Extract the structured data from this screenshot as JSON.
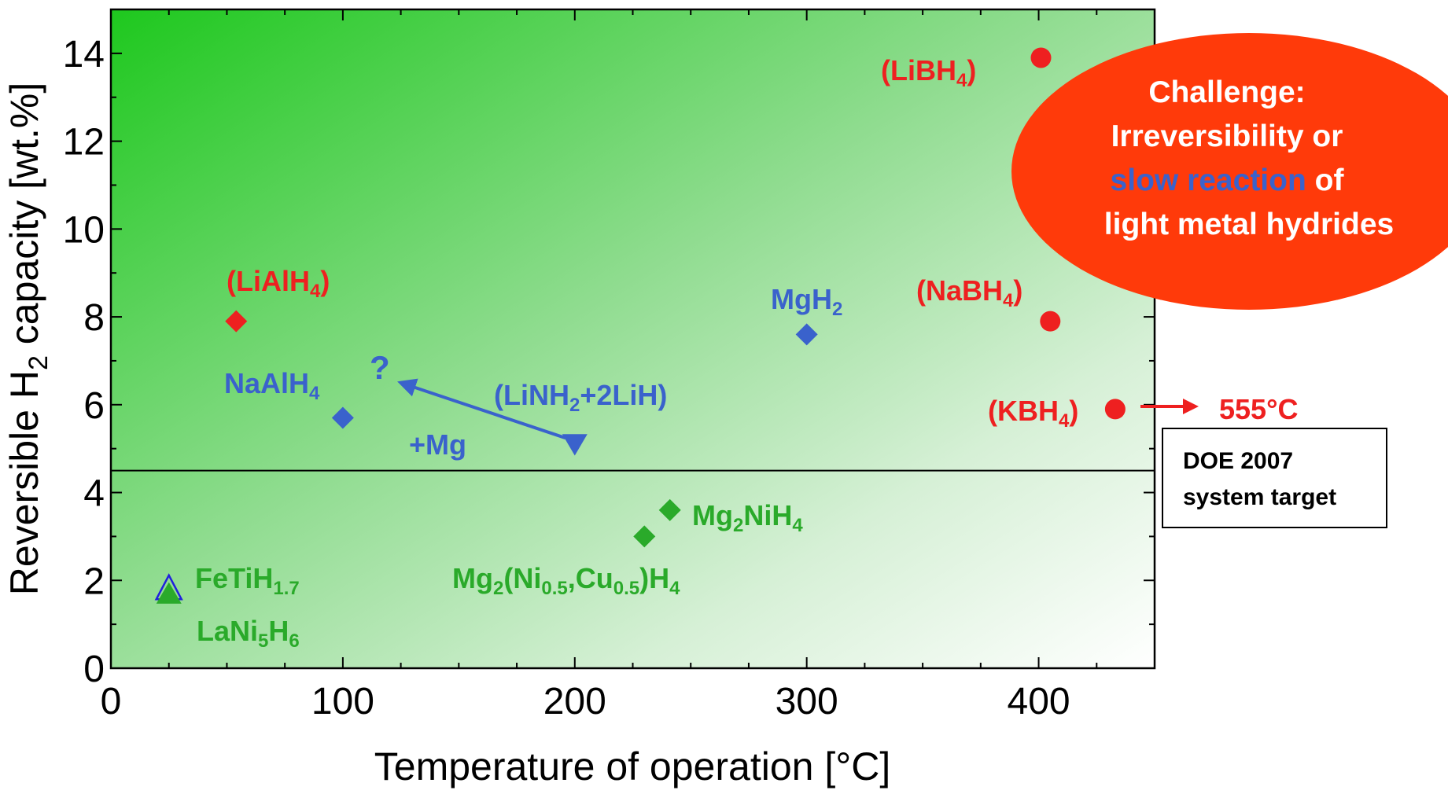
{
  "colors": {
    "red": "#ee2020",
    "blue": "#3a62cc",
    "green": "#2aaa2a",
    "callout_fill": "#ff3a0a",
    "callout_text": "#ffffff",
    "target_line": "#000000",
    "background_gradient_top_left": "#1ec81e",
    "background_gradient_bottom_right": "#ffffff"
  },
  "chart_data": {
    "type": "scatter",
    "title": "",
    "xlabel": "Temperature of operation [°C]",
    "ylabel": "Reversible H₂ capacity [wt.%]",
    "ylabel_parts": {
      "before": "Reversible H",
      "sub": "2",
      "after": " capacity [wt.%]"
    },
    "xlim": [
      0,
      450
    ],
    "ylim": [
      0,
      15
    ],
    "xticks": [
      0,
      100,
      200,
      300,
      400
    ],
    "yticks": [
      0,
      2,
      4,
      6,
      8,
      10,
      12,
      14
    ],
    "grid": false,
    "background": "green-to-white gradient",
    "points": [
      {
        "name": "(LiBH4)",
        "x": 401,
        "y": 13.9,
        "marker": "circle",
        "color": "red"
      },
      {
        "name": "(NaBH4)",
        "x": 405,
        "y": 7.9,
        "marker": "circle",
        "color": "red"
      },
      {
        "name": "(KBH4)",
        "x": 433,
        "y": 5.9,
        "marker": "circle",
        "color": "red"
      },
      {
        "name": "(LiAlH4)",
        "x": 54,
        "y": 7.9,
        "marker": "diamond",
        "color": "red"
      },
      {
        "name": "MgH2",
        "x": 300,
        "y": 7.6,
        "marker": "diamond",
        "color": "blue"
      },
      {
        "name": "NaAlH4",
        "x": 100,
        "y": 5.7,
        "marker": "diamond",
        "color": "blue"
      },
      {
        "name": "(LiNH2+2LiH)",
        "x": 200,
        "y": 5.1,
        "marker": "triangle-down",
        "color": "blue"
      },
      {
        "name": "Mg2NiH4",
        "x": 241,
        "y": 3.6,
        "marker": "diamond",
        "color": "green"
      },
      {
        "name": "Mg2(Ni0.5,Cu0.5)H4",
        "x": 230,
        "y": 3.0,
        "marker": "diamond",
        "color": "green"
      },
      {
        "name": "FeTiH1.7",
        "x": 25,
        "y": 1.8,
        "marker": "triangle-up-open",
        "color": "blue"
      },
      {
        "name": "LaNi5H6",
        "x": 25,
        "y": 1.7,
        "marker": "triangle-up",
        "color": "green"
      }
    ],
    "reference_line": {
      "y": 4.5
    },
    "arrow": {
      "from": [
        200,
        5.1
      ],
      "to": [
        125,
        6.5
      ],
      "color": "blue"
    },
    "annotations": {
      "question_mark": "?",
      "plus_mg": "+Mg",
      "kbh4_melt_temp": "555°C"
    },
    "callout": {
      "lines": [
        "Challenge:",
        "Irreversibility or",
        "slow reaction",
        " of",
        "light metal hydrides"
      ]
    },
    "target_box": {
      "lines": [
        "DOE 2007",
        "system target"
      ]
    }
  }
}
